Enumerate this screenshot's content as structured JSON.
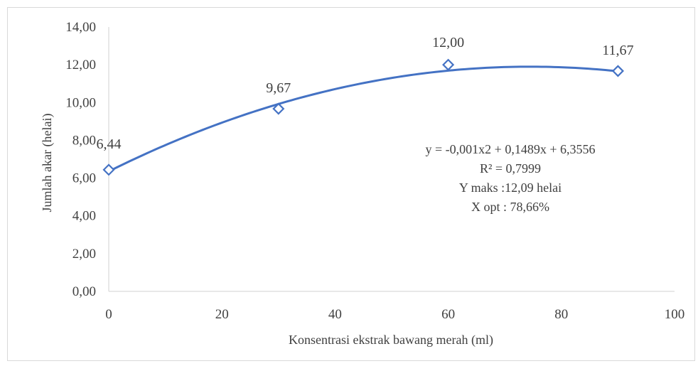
{
  "chart_data": {
    "type": "scatter",
    "xlabel": "Konsentrasi ekstrak bawang  merah (ml)",
    "ylabel": "Jumlah akar (helai)",
    "xlim": [
      0,
      100
    ],
    "ylim": [
      0,
      14
    ],
    "x_ticks": [
      0,
      20,
      40,
      60,
      80,
      100
    ],
    "x_tick_labels": [
      "0",
      "20",
      "40",
      "60",
      "80",
      "100"
    ],
    "y_ticks": [
      0,
      2,
      4,
      6,
      8,
      10,
      12,
      14
    ],
    "y_tick_labels": [
      "0,00",
      "2,00",
      "4,00",
      "6,00",
      "8,00",
      "10,00",
      "12,00",
      "14,00"
    ],
    "series": [
      {
        "x": [
          0,
          30,
          60,
          90
        ],
        "y": [
          6.44,
          9.67,
          12.0,
          11.67
        ],
        "labels": [
          "6,44",
          "9,67",
          "12,00",
          "11,67"
        ],
        "marker": "diamond-open",
        "color": "#4472c4"
      }
    ],
    "trendline": {
      "type": "polynomial",
      "order": 2,
      "coefficients": {
        "a": -0.001,
        "b": 0.1489,
        "c": 6.3556
      },
      "x_range": [
        0,
        90
      ],
      "color": "#4472c4"
    },
    "annotations": [
      "y = -0,001x2 + 0,1489x + 6,3556",
      "R² = 0,7999",
      "Y maks :12,09 helai",
      "X opt : 78,66%"
    ],
    "grid": false,
    "legend": "none"
  }
}
